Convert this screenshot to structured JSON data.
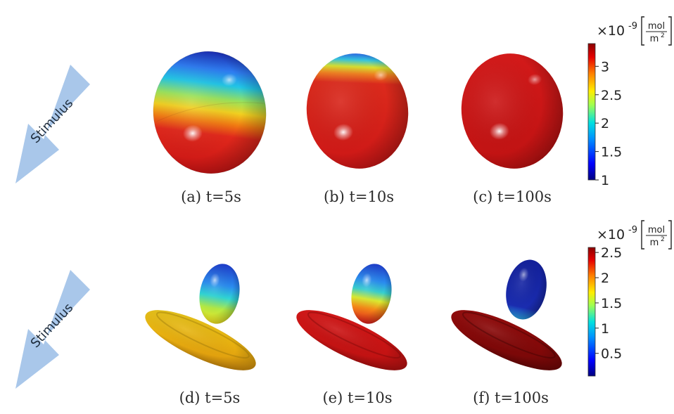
{
  "arrow_label": "Stimulus",
  "rows": [
    {
      "panels": [
        {
          "caption": "(a) t=5s"
        },
        {
          "caption": "(b) t=10s"
        },
        {
          "caption": "(c) t=100s"
        }
      ],
      "colorbar": {
        "multiplier": "×10",
        "exponent": "-9",
        "unit_numerator": "mol",
        "unit_denominator": "m",
        "unit_denominator_power": "2",
        "range": [
          1,
          3.4
        ],
        "ticks": [
          {
            "value": 3,
            "label": "3"
          },
          {
            "value": 2.5,
            "label": "2.5"
          },
          {
            "value": 2,
            "label": "2"
          },
          {
            "value": 1.5,
            "label": "1.5"
          },
          {
            "value": 1,
            "label": "1"
          }
        ]
      }
    },
    {
      "panels": [
        {
          "caption": "(d) t=5s"
        },
        {
          "caption": "(e) t=10s"
        },
        {
          "caption": "(f) t=100s"
        }
      ],
      "colorbar": {
        "multiplier": "×10",
        "exponent": "-9",
        "unit_numerator": "mol",
        "unit_denominator": "m",
        "unit_denominator_power": "2",
        "range": [
          0.05,
          2.6
        ],
        "ticks": [
          {
            "value": 2.5,
            "label": "2.5"
          },
          {
            "value": 2,
            "label": "2"
          },
          {
            "value": 1.5,
            "label": "1.5"
          },
          {
            "value": 1,
            "label": "1"
          },
          {
            "value": 0.5,
            "label": "0.5"
          }
        ]
      }
    }
  ],
  "colors": {
    "arrow": "#a9c7ea",
    "jet": [
      "#00007f",
      "#0000ff",
      "#007fff",
      "#00ffff",
      "#7fff7f",
      "#ffff00",
      "#ff7f00",
      "#ff0000",
      "#7f0000"
    ]
  }
}
